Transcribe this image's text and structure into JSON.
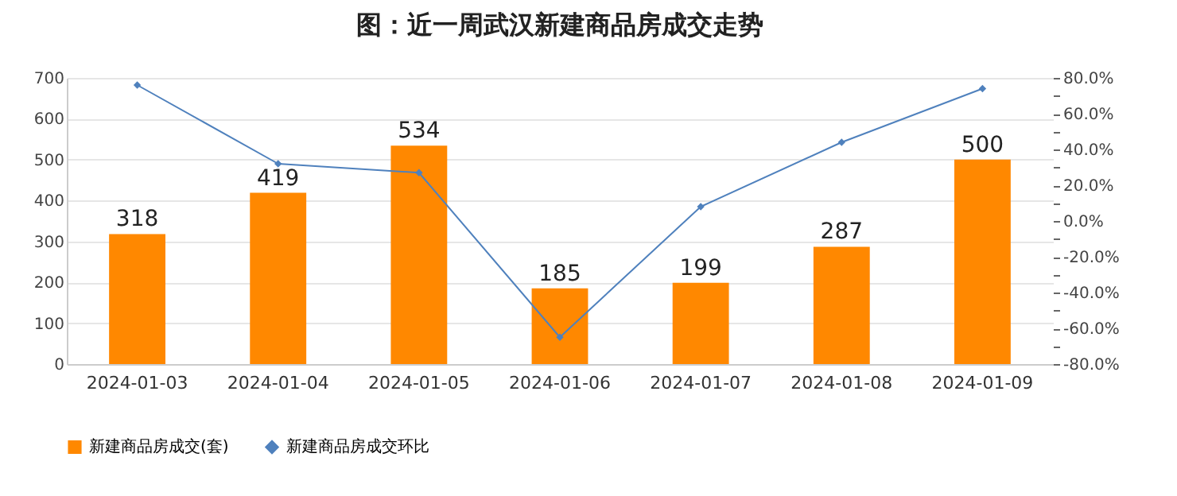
{
  "chart_data": {
    "type": "bar",
    "title": "图：近一周武汉新建商品房成交走势",
    "categories": [
      "2024-01-03",
      "2024-01-04",
      "2024-01-05",
      "2024-01-06",
      "2024-01-07",
      "2024-01-08",
      "2024-01-09"
    ],
    "series": [
      {
        "name": "新建商品房成交(套)",
        "color": "#ff8800",
        "values": [
          318,
          419,
          534,
          185,
          199,
          287,
          500
        ],
        "value_labels": [
          "318",
          "419",
          "534",
          "185",
          "199",
          "287",
          "500"
        ]
      },
      {
        "name": "新建商品房成交环比",
        "type": "line",
        "axis": "y2",
        "color": "#4f81bd",
        "values": [
          76,
          32,
          27,
          -65,
          8,
          44,
          74
        ]
      }
    ],
    "ylim": [
      0,
      700
    ],
    "yticks": [
      0,
      100,
      200,
      300,
      400,
      500,
      600,
      700
    ],
    "y2lim": [
      -80,
      80
    ],
    "y2ticks": [
      {
        "value": -80,
        "label": "-80.0%"
      },
      {
        "value": -70,
        "label": null
      },
      {
        "value": -60,
        "label": "-60.0%"
      },
      {
        "value": -50,
        "label": null
      },
      {
        "value": -40,
        "label": "-40.0%"
      },
      {
        "value": -30,
        "label": null
      },
      {
        "value": -20,
        "label": "-20.0%"
      },
      {
        "value": -10,
        "label": null
      },
      {
        "value": 0,
        "label": "0.0%"
      },
      {
        "value": 10,
        "label": null
      },
      {
        "value": 20,
        "label": "20.0%"
      },
      {
        "value": 30,
        "label": null
      },
      {
        "value": 40,
        "label": "40.0%"
      },
      {
        "value": 50,
        "label": null
      },
      {
        "value": 60,
        "label": "60.0%"
      },
      {
        "value": 70,
        "label": null
      },
      {
        "value": 80,
        "label": "80.0%"
      }
    ],
    "grid": "y",
    "legend": "bottom",
    "marker": "diamond",
    "line_style": "solid"
  }
}
